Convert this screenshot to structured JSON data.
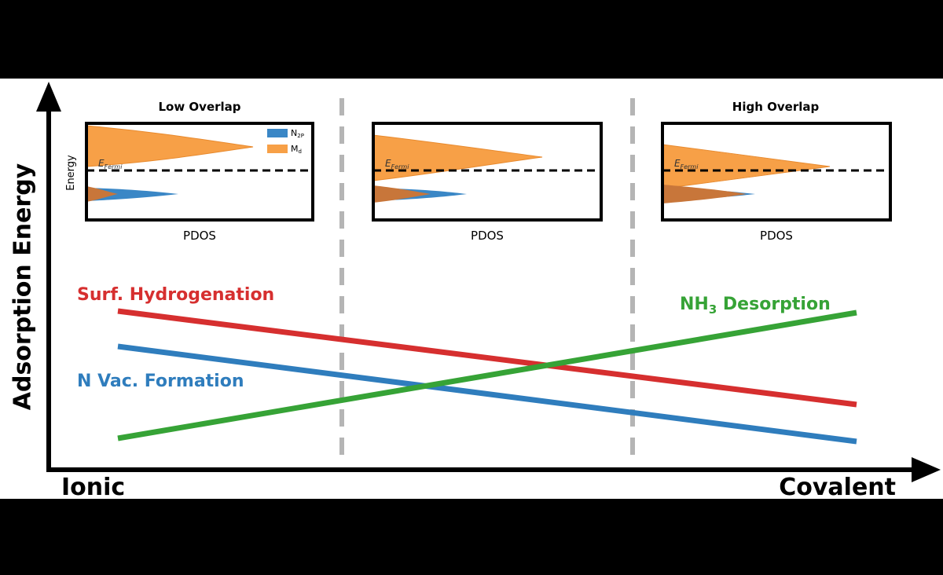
{
  "axes": {
    "y_label": "Adsorption Energy",
    "x_left": "Ionic",
    "x_right": "Covalent"
  },
  "panels": [
    {
      "title": "Low Overlap",
      "x_label": "PDOS",
      "y_label": "Energy",
      "fermi": {
        "base": "E",
        "sub": "Fermi"
      },
      "legend": [
        {
          "base": "N",
          "sub": "2P"
        },
        {
          "base": "M",
          "sub": "d"
        }
      ]
    },
    {
      "x_label": "PDOS",
      "fermi": {
        "base": "E",
        "sub": "Fermi"
      }
    },
    {
      "title": "High Overlap",
      "x_label": "PDOS",
      "fermi": {
        "base": "E",
        "sub": "Fermi"
      }
    }
  ],
  "trends": [
    {
      "label": "Surf. Hydrogenation"
    },
    {
      "label": "N Vac. Formation"
    },
    {
      "label": {
        "base": "NH",
        "sub": "3",
        "rest": " Desorption"
      }
    }
  ]
}
